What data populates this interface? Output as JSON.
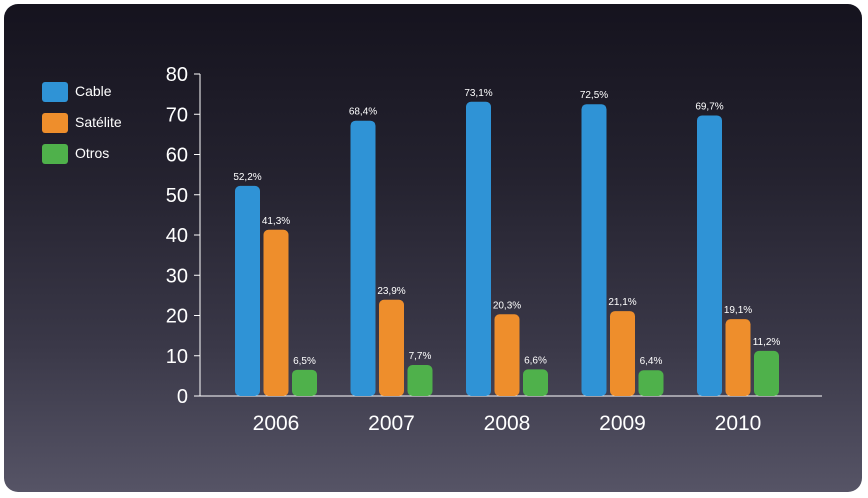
{
  "chart_data": {
    "type": "bar",
    "categories": [
      "2006",
      "2007",
      "2008",
      "2009",
      "2010"
    ],
    "series": [
      {
        "name": "Cable",
        "color": "#2f93d6",
        "values": [
          52.2,
          68.4,
          73.1,
          72.5,
          69.7
        ],
        "labels": [
          "52,2%",
          "68,4%",
          "73,1%",
          "72,5%",
          "69,7%"
        ]
      },
      {
        "name": "Satélite",
        "color": "#ee8e2c",
        "values": [
          41.3,
          23.9,
          20.3,
          21.1,
          19.1
        ],
        "labels": [
          "41,3%",
          "23,9%",
          "20,3%",
          "21,1%",
          "19,1%"
        ]
      },
      {
        "name": "Otros",
        "color": "#4fb14b",
        "values": [
          6.5,
          7.7,
          6.6,
          6.4,
          11.2
        ],
        "labels": [
          "6,5%",
          "7,7%",
          "6,6%",
          "6,4%",
          "11,2%"
        ]
      }
    ],
    "yticks": [
      "0",
      "10",
      "20",
      "30",
      "40",
      "50",
      "60",
      "70",
      "80"
    ],
    "ylim": [
      0,
      80
    ],
    "legend_position": "top-left",
    "grid": false
  }
}
